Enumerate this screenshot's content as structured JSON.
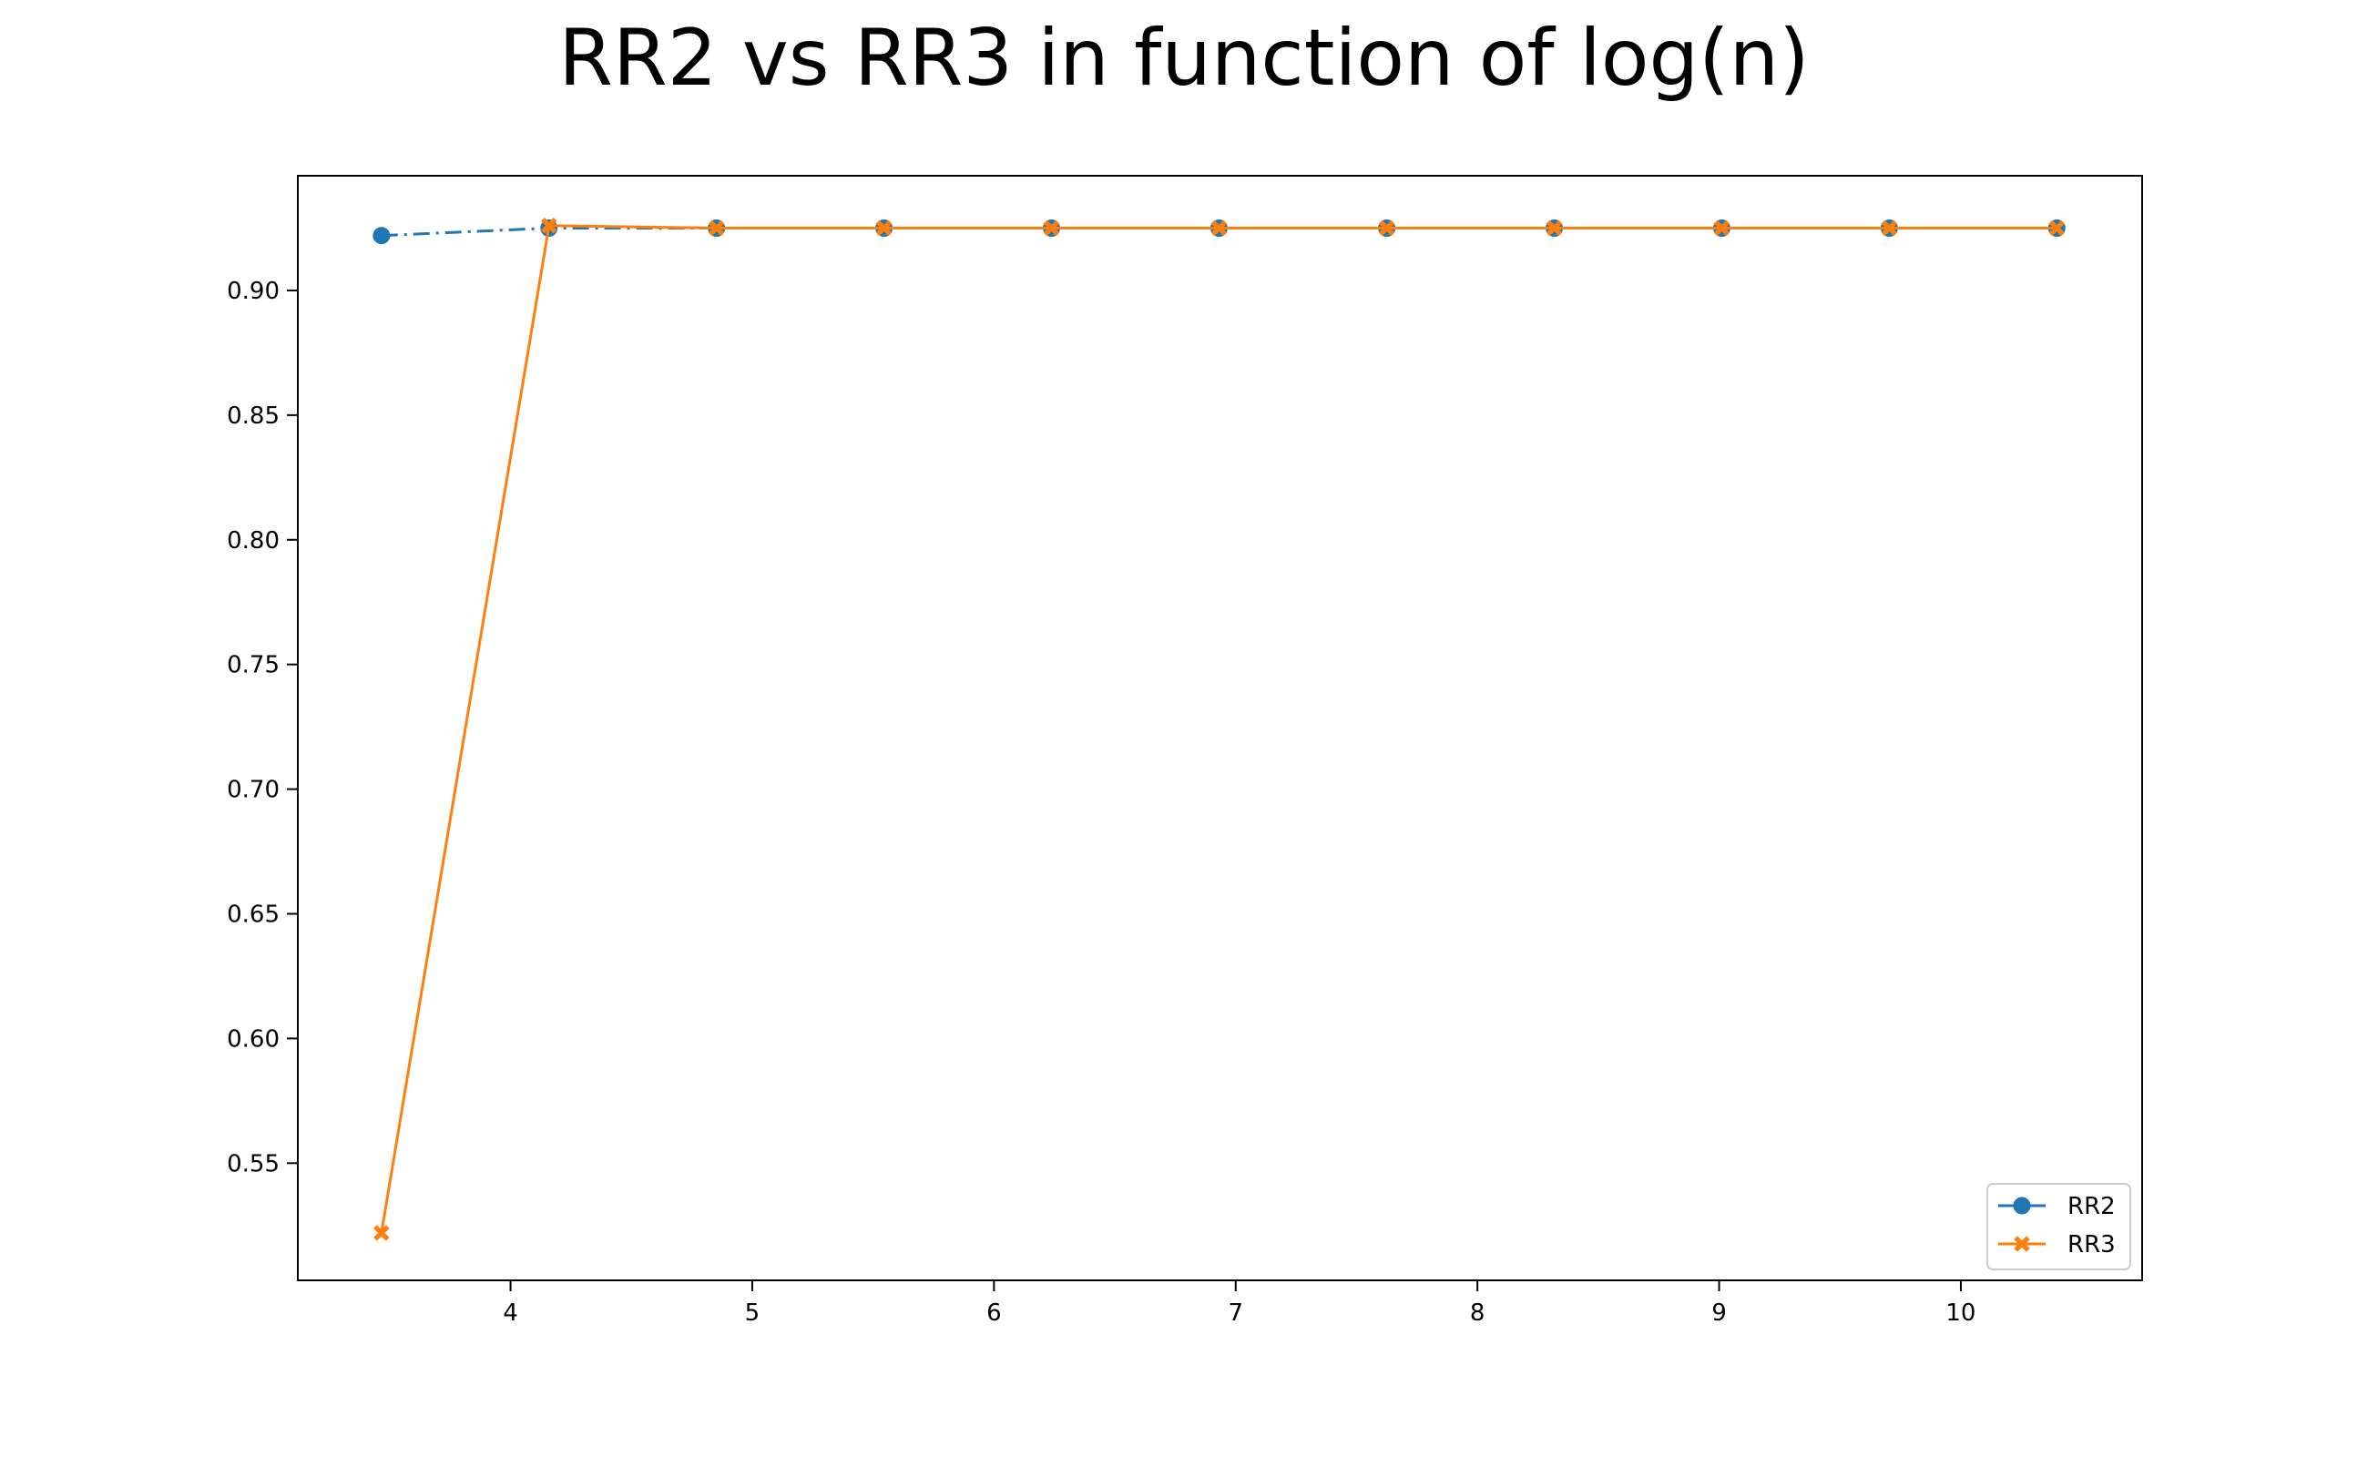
{
  "chart_data": {
    "type": "line",
    "title": "RR2 vs RR3 in function of log(n)",
    "xlabel": "",
    "ylabel": "",
    "xlim": [
      3.12,
      10.75
    ],
    "ylim": [
      0.503,
      0.946
    ],
    "x": [
      3.466,
      4.159,
      4.852,
      5.545,
      6.238,
      6.931,
      7.625,
      8.318,
      9.011,
      9.704,
      10.397
    ],
    "xticks": [
      4,
      5,
      6,
      7,
      8,
      9,
      10
    ],
    "yticks": [
      0.55,
      0.6,
      0.65,
      0.7,
      0.75,
      0.8,
      0.85,
      0.9
    ],
    "grid": false,
    "legend_position": "lower-right",
    "series": [
      {
        "name": "RR2",
        "color": "#1f77b4",
        "linestyle": "dashdot",
        "marker": "circle",
        "values": [
          0.922,
          0.925,
          0.925,
          0.925,
          0.925,
          0.925,
          0.925,
          0.925,
          0.925,
          0.925,
          0.925
        ]
      },
      {
        "name": "RR3",
        "color": "#ff7f0e",
        "linestyle": "solid",
        "marker": "x",
        "values": [
          0.522,
          0.926,
          0.925,
          0.925,
          0.925,
          0.925,
          0.925,
          0.925,
          0.925,
          0.925,
          0.925
        ]
      }
    ]
  }
}
